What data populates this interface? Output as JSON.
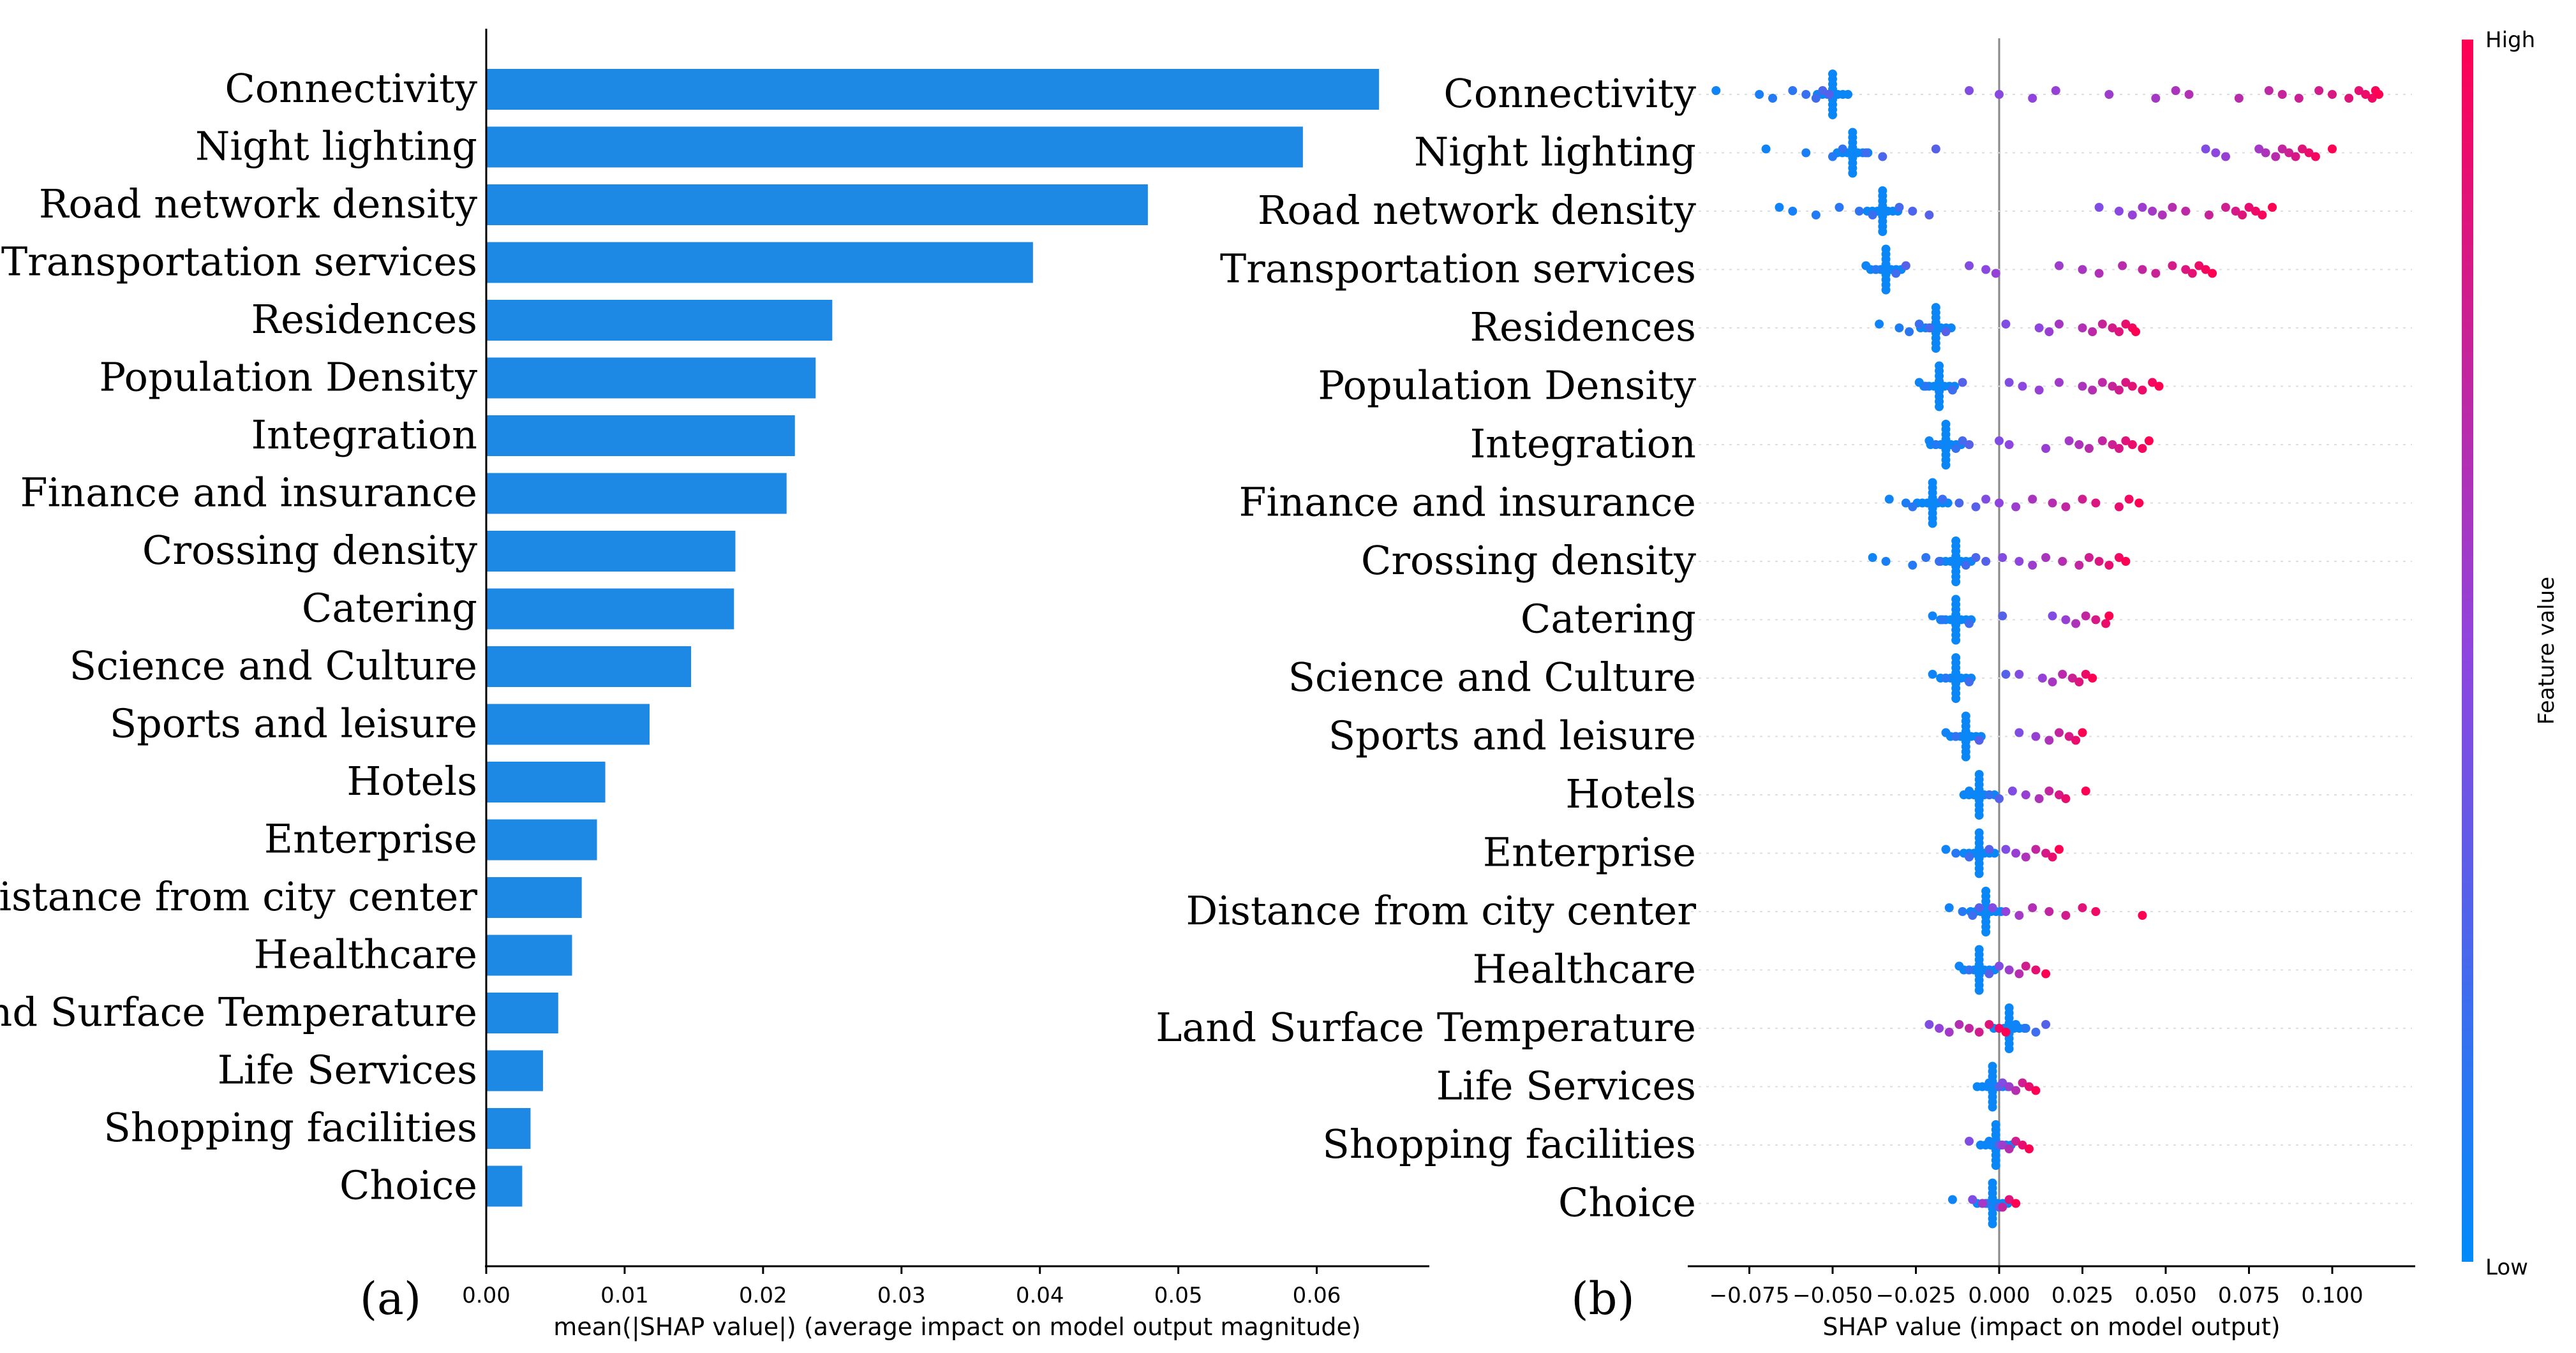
{
  "chart_data": [
    {
      "type": "bar",
      "orientation": "horizontal",
      "panel_label": "(a)",
      "xlabel": "mean(|SHAP value|) (average impact on model output magnitude)",
      "ylabel": "",
      "xlim": [
        0,
        0.068
      ],
      "xticks": [
        "0.00",
        "0.01",
        "0.02",
        "0.03",
        "0.04",
        "0.05",
        "0.06"
      ],
      "color": "#1e88e5",
      "categories": [
        "Connectivity",
        "Night lighting",
        "Road network density",
        "Transportation services",
        "Residences",
        "Population Density",
        "Integration",
        "Finance and insurance",
        "Crossing density",
        "Catering",
        "Science and Culture",
        "Sports and leisure",
        "Hotels",
        "Enterprise",
        "Distance from city center",
        "Healthcare",
        "Land Surface Temperature",
        "Life Services",
        "Shopping facilities",
        "Choice"
      ],
      "values": [
        0.0645,
        0.059,
        0.0478,
        0.0395,
        0.025,
        0.0238,
        0.0223,
        0.0217,
        0.018,
        0.0179,
        0.0148,
        0.0118,
        0.0086,
        0.008,
        0.0069,
        0.0062,
        0.0052,
        0.0041,
        0.0032,
        0.0026
      ]
    },
    {
      "type": "scatter",
      "subtype": "beeswarm",
      "panel_label": "(b)",
      "xlabel": "SHAP value (impact on model output)",
      "xlim": [
        -0.095,
        0.125
      ],
      "xticks": [
        "−0.075",
        "−0.050",
        "−0.025",
        "0.000",
        "0.025",
        "0.050",
        "0.075",
        "0.100"
      ],
      "colorbar": {
        "title": "Feature value",
        "high_label": "High",
        "low_label": "Low",
        "high_color": "#ff0052",
        "low_color": "#008bfb"
      },
      "series": [
        {
          "name": "Connectivity",
          "low_cluster": -0.05,
          "low_points": [
            -0.085,
            -0.072,
            -0.068,
            -0.062,
            -0.058,
            -0.055,
            -0.053,
            -0.051
          ],
          "high_points": [
            -0.009,
            0.0,
            0.01,
            0.017,
            0.033,
            0.047,
            0.053,
            0.057,
            0.072,
            0.081,
            0.085,
            0.09,
            0.096,
            0.1,
            0.105,
            0.108,
            0.11,
            0.112,
            0.113,
            0.114
          ]
        },
        {
          "name": "Night lighting",
          "low_cluster": -0.044,
          "low_points": [
            -0.07,
            -0.058,
            -0.05,
            -0.047,
            -0.04,
            -0.035,
            -0.019
          ],
          "high_points": [
            0.062,
            0.065,
            0.068,
            0.078,
            0.08,
            0.083,
            0.085,
            0.087,
            0.089,
            0.091,
            0.093,
            0.095,
            0.1
          ]
        },
        {
          "name": "Road network density",
          "low_cluster": -0.035,
          "low_points": [
            -0.066,
            -0.062,
            -0.055,
            -0.048,
            -0.042,
            -0.038,
            -0.03,
            -0.026,
            -0.021
          ],
          "high_points": [
            0.03,
            0.036,
            0.04,
            0.043,
            0.046,
            0.049,
            0.052,
            0.056,
            0.063,
            0.068,
            0.071,
            0.073,
            0.075,
            0.077,
            0.079,
            0.082
          ]
        },
        {
          "name": "Transportation services",
          "low_cluster": -0.034,
          "low_points": [
            -0.04,
            -0.037,
            -0.031,
            -0.028
          ],
          "high_points": [
            -0.009,
            -0.004,
            -0.001,
            0.018,
            0.025,
            0.03,
            0.037,
            0.043,
            0.047,
            0.052,
            0.056,
            0.058,
            0.06,
            0.062,
            0.064
          ]
        },
        {
          "name": "Residences",
          "low_cluster": -0.019,
          "low_points": [
            -0.036,
            -0.03,
            -0.027,
            -0.024,
            -0.021,
            -0.016
          ],
          "high_points": [
            0.002,
            0.012,
            0.015,
            0.018,
            0.025,
            0.028,
            0.031,
            0.034,
            0.036,
            0.038,
            0.04,
            0.041
          ]
        },
        {
          "name": "Population Density",
          "low_cluster": -0.018,
          "low_points": [
            -0.024,
            -0.022,
            -0.014,
            -0.011
          ],
          "high_points": [
            0.003,
            0.007,
            0.012,
            0.018,
            0.025,
            0.028,
            0.031,
            0.034,
            0.036,
            0.038,
            0.04,
            0.043,
            0.046,
            0.048
          ]
        },
        {
          "name": "Integration",
          "low_cluster": -0.016,
          "low_points": [
            -0.021,
            -0.019,
            -0.013,
            -0.011,
            -0.009
          ],
          "high_points": [
            0.0,
            0.003,
            0.014,
            0.021,
            0.024,
            0.027,
            0.031,
            0.034,
            0.036,
            0.038,
            0.04,
            0.043,
            0.045
          ]
        },
        {
          "name": "Finance and insurance",
          "low_cluster": -0.02,
          "low_points": [
            -0.033,
            -0.028,
            -0.026,
            -0.017,
            -0.012,
            -0.007
          ],
          "high_points": [
            -0.004,
            0.0,
            0.005,
            0.01,
            0.016,
            0.02,
            0.025,
            0.029,
            0.036,
            0.039,
            0.042
          ]
        },
        {
          "name": "Crossing density",
          "low_cluster": -0.013,
          "low_points": [
            -0.038,
            -0.034,
            -0.026,
            -0.022,
            -0.018,
            -0.01,
            -0.007,
            -0.004
          ],
          "high_points": [
            0.001,
            0.006,
            0.01,
            0.014,
            0.019,
            0.024,
            0.027,
            0.03,
            0.033,
            0.036,
            0.038
          ]
        },
        {
          "name": "Catering",
          "low_cluster": -0.013,
          "low_points": [
            -0.02,
            -0.017,
            -0.009,
            0.001
          ],
          "high_points": [
            0.016,
            0.02,
            0.023,
            0.026,
            0.029,
            0.032,
            0.033
          ]
        },
        {
          "name": "Science and Culture",
          "low_cluster": -0.013,
          "low_points": [
            -0.02,
            -0.016,
            -0.009,
            0.002
          ],
          "high_points": [
            0.006,
            0.013,
            0.016,
            0.019,
            0.022,
            0.024,
            0.026,
            0.028
          ]
        },
        {
          "name": "Sports and leisure",
          "low_cluster": -0.01,
          "low_points": [
            -0.016,
            -0.013,
            -0.006
          ],
          "high_points": [
            0.006,
            0.011,
            0.015,
            0.018,
            0.021,
            0.023,
            0.025
          ]
        },
        {
          "name": "Hotels",
          "low_cluster": -0.006,
          "low_points": [
            -0.009,
            -0.003,
            0.0
          ],
          "high_points": [
            0.004,
            0.008,
            0.012,
            0.015,
            0.018,
            0.02,
            0.026
          ]
        },
        {
          "name": "Enterprise",
          "low_cluster": -0.006,
          "low_points": [
            -0.016,
            -0.013,
            -0.009,
            -0.003
          ],
          "high_points": [
            0.002,
            0.005,
            0.008,
            0.011,
            0.014,
            0.016,
            0.018
          ]
        },
        {
          "name": "Distance from city center",
          "low_cluster": -0.004,
          "low_points": [
            -0.015,
            -0.011,
            -0.008,
            -0.006
          ],
          "high_points": [
            -0.002,
            0.002,
            0.006,
            0.01,
            0.015,
            0.02,
            0.025,
            0.029,
            0.043
          ]
        },
        {
          "name": "Healthcare",
          "low_cluster": -0.006,
          "low_points": [
            -0.012,
            -0.009,
            -0.003
          ],
          "high_points": [
            0.0,
            0.003,
            0.006,
            0.008,
            0.011,
            0.014
          ]
        },
        {
          "name": "Land Surface Temperature",
          "low_cluster": 0.003,
          "low_points": [
            0.005,
            0.008,
            0.011,
            0.014
          ],
          "high_points": [
            -0.021,
            -0.018,
            -0.015,
            -0.012,
            -0.009,
            -0.006,
            -0.003,
            0.0,
            0.002
          ]
        },
        {
          "name": "Life Services",
          "low_cluster": -0.002,
          "low_points": [
            -0.003,
            0.0
          ],
          "high_points": [
            0.001,
            0.003,
            0.005,
            0.007,
            0.009,
            0.011
          ]
        },
        {
          "name": "Shopping facilities",
          "low_cluster": -0.001,
          "low_points": [
            -0.003,
            0.0
          ],
          "high_points": [
            -0.009,
            0.001,
            0.003,
            0.005,
            0.007,
            0.009
          ]
        },
        {
          "name": "Choice",
          "low_cluster": -0.002,
          "low_points": [
            -0.014,
            -0.004,
            0.0
          ],
          "high_points": [
            -0.008,
            -0.005,
            0.001,
            0.003,
            0.005
          ]
        }
      ]
    }
  ]
}
